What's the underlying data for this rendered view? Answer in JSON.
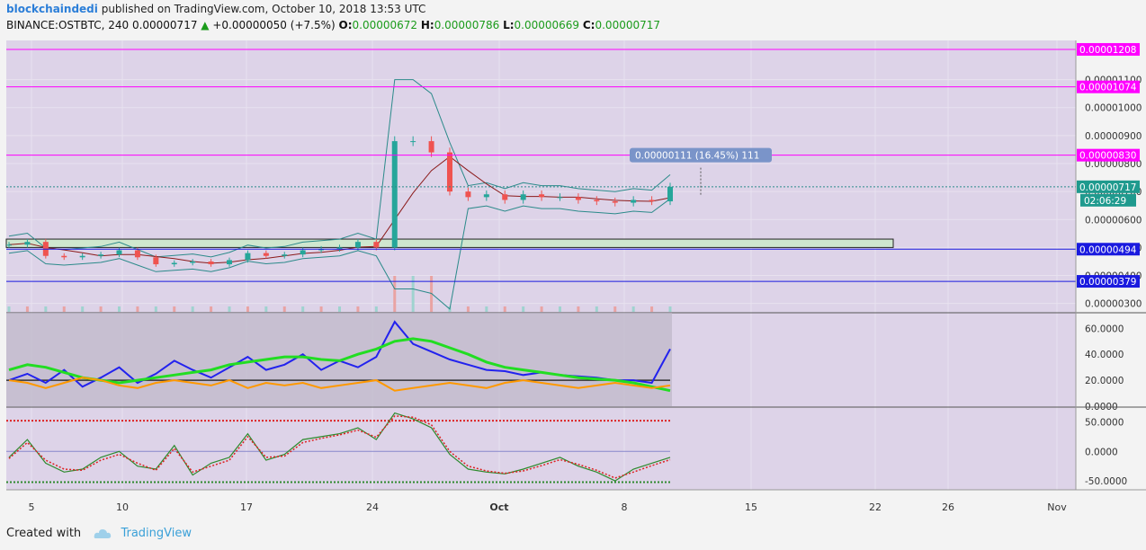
{
  "header": {
    "author": "blockchaindedi",
    "published": " published on TradingView.com, October 10, 2018 13:53 UTC",
    "symbol": "BINANCE:OSTBTC, 240",
    "last": "0.00000717",
    "change_arrow": "▲",
    "change": "+0.00000050 (+7.5%)",
    "o_label": "O:",
    "o": "0.00000672",
    "h_label": "H:",
    "h": "0.00000786",
    "l_label": "L:",
    "l": "0.00000669",
    "c_label": "C:",
    "c": "0.00000717"
  },
  "footer": {
    "created_with": "Created with",
    "brand": "TradingView"
  },
  "colors": {
    "chart_bg": "#ddd3e8",
    "magenta_line": "#ff00ff",
    "blue_line": "#1a1adf",
    "teal": "#2b8a8a",
    "up_candle": "#26a69a",
    "down_candle": "#ef5350",
    "ma_red": "#8b1a1a",
    "rsi_blue": "#2222ee",
    "rsi_orange": "#ff9900",
    "rsi_green": "#22dd22",
    "rsi_magenta": "#ee22ee",
    "osc_green": "#2d8a2d",
    "osc_red": "#dd2222"
  },
  "chart_data": [
    {
      "type": "line",
      "x": [
        "Sep 4",
        "Sep 5",
        "Sep 6",
        "Sep 7",
        "Sep 8",
        "Sep 9",
        "Sep 10",
        "Sep 11",
        "Sep 12",
        "Sep 13",
        "Sep 14",
        "Sep 15",
        "Sep 16",
        "Sep 17",
        "Sep 18",
        "Sep 19",
        "Sep 20",
        "Sep 21",
        "Sep 22",
        "Sep 23",
        "Sep 24",
        "Sep 25",
        "Sep 26",
        "Sep 27",
        "Sep 28",
        "Sep 29",
        "Sep 30",
        "Oct 1",
        "Oct 2",
        "Oct 3",
        "Oct 4",
        "Oct 5",
        "Oct 6",
        "Oct 7",
        "Oct 8",
        "Oct 9",
        "Oct 10"
      ],
      "series": [
        {
          "values": [
            5.1e-06,
            5.2e-06,
            4.7e-06,
            4.65e-06,
            4.7e-06,
            4.75e-06,
            4.9e-06,
            4.65e-06,
            4.4e-06,
            4.45e-06,
            4.5e-06,
            4.4e-06,
            4.55e-06,
            4.8e-06,
            4.7e-06,
            4.75e-06,
            4.9e-06,
            4.95e-06,
            5e-06,
            5.2e-06,
            5e-06,
            8.8e-06,
            8.8e-06,
            8.4e-06,
            7e-06,
            6.8e-06,
            6.9e-06,
            6.7e-06,
            6.9e-06,
            6.8e-06,
            6.8e-06,
            6.7e-06,
            6.65e-06,
            6.6e-06,
            6.7e-06,
            6.65e-06,
            7.17e-06
          ]
        }
      ],
      "price_levels": [
        1.208e-05,
        1.074e-05,
        8.3e-06,
        4.94e-06,
        3.79e-06
      ],
      "last_price": 7.17e-06,
      "countdown": "02:06:29",
      "measure_label": "0.00000111 (16.45%) 111",
      "y_ticks": [
        "0.00001100",
        "0.00001000",
        "0.00000900",
        "0.00000800",
        "0.00000700",
        "0.00000600",
        "0.00000500",
        "0.00000400",
        "0.00000300"
      ],
      "x_ticks": [
        "5",
        "10",
        "17",
        "24",
        "Oct",
        "8",
        "15",
        "22",
        "26",
        "Nov"
      ],
      "ylim": [
        2.7e-06,
        1.24e-05
      ]
    },
    {
      "type": "line",
      "y_ticks": [
        "60.0000",
        "40.0000",
        "20.0000",
        "0.0000"
      ],
      "series": [
        {
          "values": [
            20,
            25,
            18,
            28,
            15,
            22,
            30,
            18,
            25,
            35,
            28,
            22,
            30,
            38,
            28,
            32,
            40,
            28,
            35,
            30,
            38,
            65,
            48,
            42,
            36,
            32,
            28,
            27,
            24,
            26,
            24,
            23,
            22,
            20,
            20,
            18,
            44
          ]
        },
        {
          "values": [
            28,
            32,
            30,
            26,
            22,
            20,
            18,
            20,
            22,
            24,
            26,
            28,
            32,
            34,
            36,
            38,
            38,
            36,
            35,
            40,
            44,
            50,
            52,
            50,
            45,
            40,
            34,
            30,
            28,
            26,
            24,
            22,
            21,
            20,
            18,
            15,
            12
          ]
        },
        {
          "values": [
            20,
            18,
            14,
            18,
            22,
            20,
            16,
            14,
            18,
            20,
            18,
            16,
            20,
            14,
            18,
            16,
            18,
            14,
            16,
            18,
            20,
            12,
            14,
            16,
            18,
            16,
            14,
            18,
            20,
            18,
            16,
            14,
            16,
            18,
            16,
            14,
            16
          ]
        }
      ],
      "ylim": [
        0,
        72
      ]
    },
    {
      "type": "line",
      "y_ticks": [
        "50.0000",
        "0.0000",
        "-50.0000"
      ],
      "series": [
        {
          "values": [
            -10,
            20,
            -20,
            -35,
            -30,
            -10,
            0,
            -25,
            -30,
            10,
            -40,
            -20,
            -10,
            30,
            -15,
            -5,
            20,
            25,
            30,
            40,
            20,
            65,
            55,
            40,
            -5,
            -30,
            -35,
            -38,
            -30,
            -20,
            -10,
            -25,
            -35,
            -50,
            -30,
            -20,
            -10
          ]
        },
        {
          "values": [
            -12,
            15,
            -15,
            -30,
            -32,
            -15,
            -5,
            -20,
            -32,
            5,
            -35,
            -25,
            -15,
            25,
            -10,
            -8,
            15,
            22,
            28,
            36,
            24,
            60,
            58,
            45,
            0,
            -25,
            -33,
            -37,
            -33,
            -24,
            -14,
            -22,
            -32,
            -45,
            -35,
            -24,
            -14
          ]
        }
      ],
      "levels": [
        52,
        -52
      ],
      "ylim": [
        -65,
        75
      ]
    }
  ]
}
